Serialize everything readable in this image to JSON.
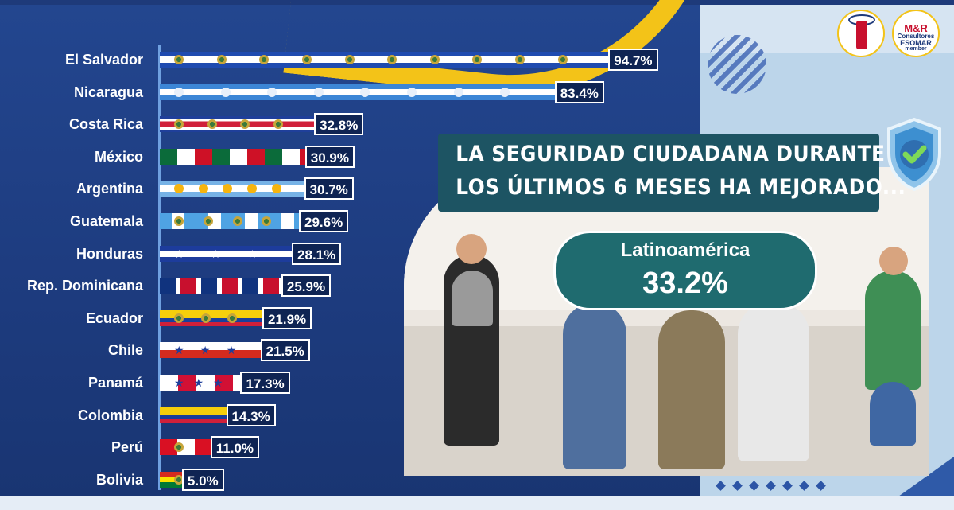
{
  "headline": {
    "line1": "LA SEGURIDAD CIUDADANA DURANTE",
    "line2": "LOS ÚLTIMOS 6 MESES HA MEJORADO..."
  },
  "region": {
    "label": "Latinoamérica",
    "value": "33.2%"
  },
  "logos": {
    "left_icon": "lighthouse-seal-icon",
    "right_text_main": "M&R",
    "right_text_sub": "Consultores",
    "right_text_org": "ESOMAR",
    "right_text_member": "member"
  },
  "colors": {
    "panel": "#1d3b7e",
    "accent_gold": "#f3c318",
    "label_bg": "#0f2453",
    "title_bg": "#1d5463",
    "pill_bg": "#1f6b6f"
  },
  "chart_data": {
    "type": "bar",
    "orientation": "horizontal",
    "categories": [
      "El Salvador",
      "Nicaragua",
      "Costa Rica",
      "México",
      "Argentina",
      "Guatemala",
      "Honduras",
      "Rep. Dominicana",
      "Ecuador",
      "Chile",
      "Panamá",
      "Colombia",
      "Perú",
      "Bolivia"
    ],
    "values": [
      94.7,
      83.4,
      32.8,
      30.9,
      30.7,
      29.6,
      28.1,
      25.9,
      21.9,
      21.5,
      17.3,
      14.3,
      11.0,
      5.0
    ],
    "value_labels": [
      "94.7%",
      "83.4%",
      "32.8%",
      "30.9%",
      "30.7%",
      "29.6%",
      "28.1%",
      "25.9%",
      "21.9%",
      "21.5%",
      "17.3%",
      "14.3%",
      "11.0%",
      "5.0%"
    ],
    "xlim": [
      0,
      100
    ],
    "grid": false,
    "legend": "none",
    "bar_fill": "country-flag",
    "flags": [
      "el-salvador-flag",
      "nicaragua-flag",
      "costa-rica-flag",
      "mexico-flag",
      "argentina-flag",
      "guatemala-flag",
      "honduras-flag",
      "dominican-republic-flag",
      "ecuador-flag",
      "chile-flag",
      "panama-flag",
      "colombia-flag",
      "peru-flag",
      "bolivia-flag"
    ]
  }
}
